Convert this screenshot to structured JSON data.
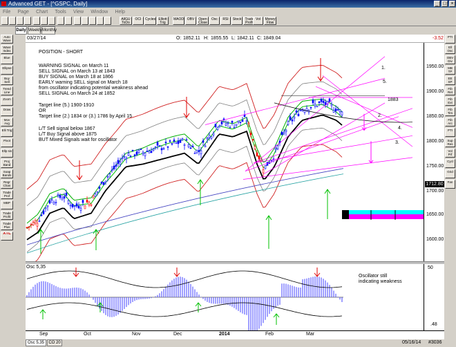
{
  "window": {
    "title": "Advanced GET - [^GSPC, Daily]"
  },
  "menu": [
    "File",
    "Page",
    "Chart",
    "Tools",
    "View",
    "Window",
    "Help"
  ],
  "toolbar": [
    "AllGU\nToDo",
    "OCI",
    "Cycles",
    "Elliott\nTrig",
    "MAOD",
    "OBV",
    "Open\nClose",
    "Osc",
    "RSI",
    "Stock",
    "Trade\nProfit",
    "Vol",
    "Money\nFlow"
  ],
  "tabs": [
    "Daily",
    "Weekly",
    "Monthly"
  ],
  "left_tools": [
    "Auto\nWave",
    "Wave\nIndex",
    "Blue",
    "Ellipse",
    "Buy\nSell",
    "Trend\nLine",
    "Zoom",
    "Draw",
    "Mov\nAvg",
    "Elli\nTrig",
    "Pivot",
    "Ellp\nsis",
    "Proj\nBand",
    "Soap\nBands",
    "Regr\nChan",
    "Trade\nProf",
    "MBP",
    "Trade\nProfit",
    "Trade\nPlus",
    "XTL"
  ],
  "right_tools": [
    "PTI",
    "Ell\nOsc",
    "OBV\nDiv",
    "MB\nTP",
    "EE\nSP",
    "Fib\nRet",
    "Fib\nExt",
    "Fib\nTim",
    "Fib\nArc",
    "PTI",
    "Sup\nRes",
    "Vol\nPrf",
    "Cycl",
    "Grid",
    "Fan"
  ],
  "chart_header": {
    "date": "03/27/14",
    "open": "1852.11",
    "high": "1855.55",
    "low": "1842.11",
    "close": "1849.04",
    "change": "-3.52"
  },
  "price_axis": {
    "labels": [
      "1950.00",
      "1900.00",
      "1850.00",
      "1800.00",
      "1750.00",
      "1700.00",
      "1650.00",
      "1600.00"
    ],
    "last": "1712.80"
  },
  "annotations": {
    "block1": [
      "POSITION - SHORT"
    ],
    "block2": [
      "WARNING SIGNAL on March 11",
      "SELL SIGNAL on March 13 at 1843",
      "BUY SIGNAL on March 18 at 1866",
      "EARLY warning SELL signal on March 18",
      "from oscillator indicating potential weakness ahead",
      "SELL SIGNAL on March 24 at 1852"
    ],
    "block3": [
      "Target line (5.) 1900-1910",
      "OR",
      "Target line (2.) 1834 or (3.) 1786 by April 15"
    ],
    "block4": [
      "L/T Sell signal below 1867",
      "L/T Buy Signal above 1875",
      "BUT Mixed Signals wait for oscillator"
    ],
    "level_1883": "1883",
    "target_labels": [
      "1.",
      "5.",
      "2.",
      "4.",
      "3."
    ]
  },
  "oscillator": {
    "label": "Osc 5,35",
    "note": "Oscillator still indicating weakness",
    "top": "50",
    "bottom": ".48"
  },
  "x_axis": {
    "labels": [
      "Sep",
      "Oct",
      "Nov",
      "Dec",
      "2014",
      "Feb",
      "Mar"
    ]
  },
  "status": {
    "tabs": [
      "Osc 5,35",
      "CO 20"
    ],
    "date": "05/16/14",
    "id": "#3036"
  },
  "colors": {
    "up": "#0000ff",
    "down": "#ff0000",
    "green_ma": "#00c000",
    "black_ma": "#000000",
    "band": "#ff00ff",
    "cyan": "#00ffff"
  },
  "chart_data": {
    "type": "line",
    "x": [
      "Sep",
      "Oct",
      "Nov",
      "Dec",
      "2014",
      "Feb",
      "Mar"
    ],
    "series": [
      {
        "name": "^GSPC",
        "values": [
          1640,
          1690,
          1765,
          1790,
          1840,
          1745,
          1849
        ]
      }
    ],
    "ylim": [
      1580,
      1980
    ]
  }
}
